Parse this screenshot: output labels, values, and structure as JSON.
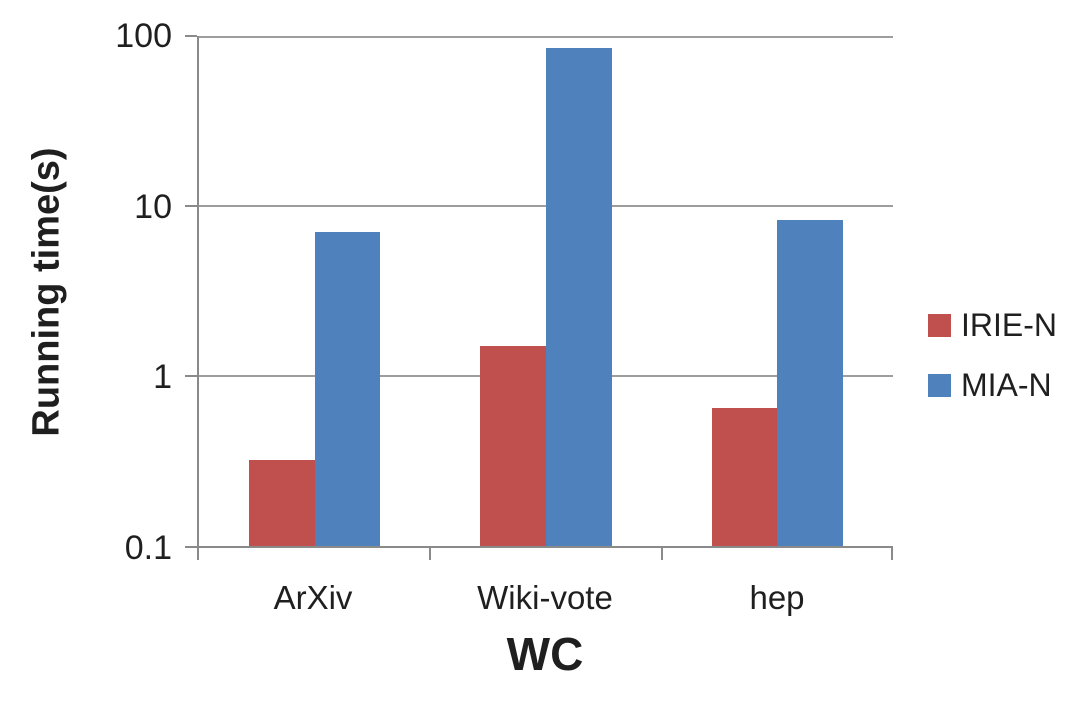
{
  "chart_data": {
    "type": "bar",
    "title": "",
    "xlabel": "WC",
    "ylabel": "Running time(s)",
    "yscale": "log",
    "ylim": [
      0.1,
      100
    ],
    "ytick_labels": [
      "100",
      "10",
      "1",
      "0.1"
    ],
    "categories": [
      "ArXiv",
      "Wiki-vote",
      "hep"
    ],
    "series": [
      {
        "name": "IRIE-N",
        "color": "#C0504D",
        "values": [
          0.32,
          1.5,
          0.65
        ]
      },
      {
        "name": "MIA-N",
        "color": "#4F81BD",
        "values": [
          7,
          85,
          8.3
        ]
      }
    ],
    "grid": true,
    "legend_position": "right"
  },
  "colors": {
    "axis": "#8a8a8a",
    "gridline": "#9d9d9d",
    "text": "#1f1f1f",
    "series_irie_n": "#C0504D",
    "series_mia_n": "#4F81BD"
  }
}
